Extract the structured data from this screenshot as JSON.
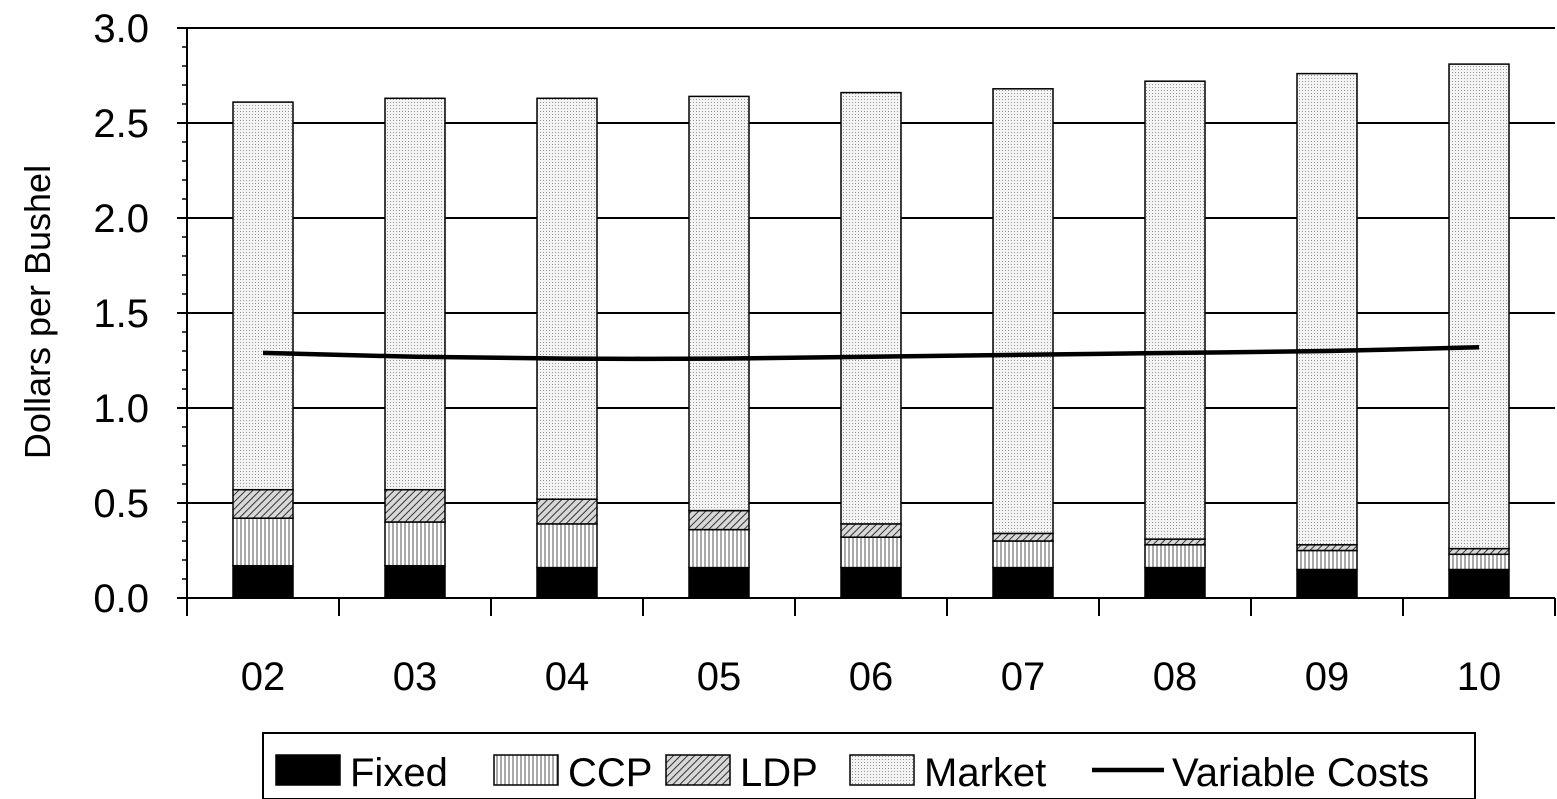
{
  "chart_data": {
    "type": "bar",
    "stacked": true,
    "categories": [
      "02",
      "03",
      "04",
      "05",
      "06",
      "07",
      "08",
      "09",
      "10"
    ],
    "ylabel": "Dollars per Bushel",
    "xlabel": "",
    "ylim": [
      0,
      3.0
    ],
    "yticks": [
      "0.0",
      "0.5",
      "1.0",
      "1.5",
      "2.0",
      "2.5",
      "3.0"
    ],
    "grid": true,
    "legend_position": "bottom",
    "series": [
      {
        "name": "Fixed",
        "kind": "bar",
        "pattern": "solid",
        "values": [
          0.17,
          0.17,
          0.16,
          0.16,
          0.16,
          0.16,
          0.16,
          0.15,
          0.15
        ]
      },
      {
        "name": "CCP",
        "kind": "bar",
        "pattern": "vertical",
        "values": [
          0.25,
          0.23,
          0.23,
          0.2,
          0.16,
          0.14,
          0.12,
          0.1,
          0.08
        ]
      },
      {
        "name": "LDP",
        "kind": "bar",
        "pattern": "diagonal",
        "values": [
          0.15,
          0.17,
          0.13,
          0.1,
          0.07,
          0.04,
          0.03,
          0.03,
          0.03
        ]
      },
      {
        "name": "Market",
        "kind": "bar",
        "pattern": "dots",
        "values": [
          2.04,
          2.06,
          2.11,
          2.18,
          2.27,
          2.34,
          2.41,
          2.48,
          2.55
        ]
      },
      {
        "name": "Variable Costs",
        "kind": "line",
        "values": [
          1.29,
          1.27,
          1.26,
          1.26,
          1.27,
          1.28,
          1.29,
          1.3,
          1.32
        ]
      }
    ]
  }
}
